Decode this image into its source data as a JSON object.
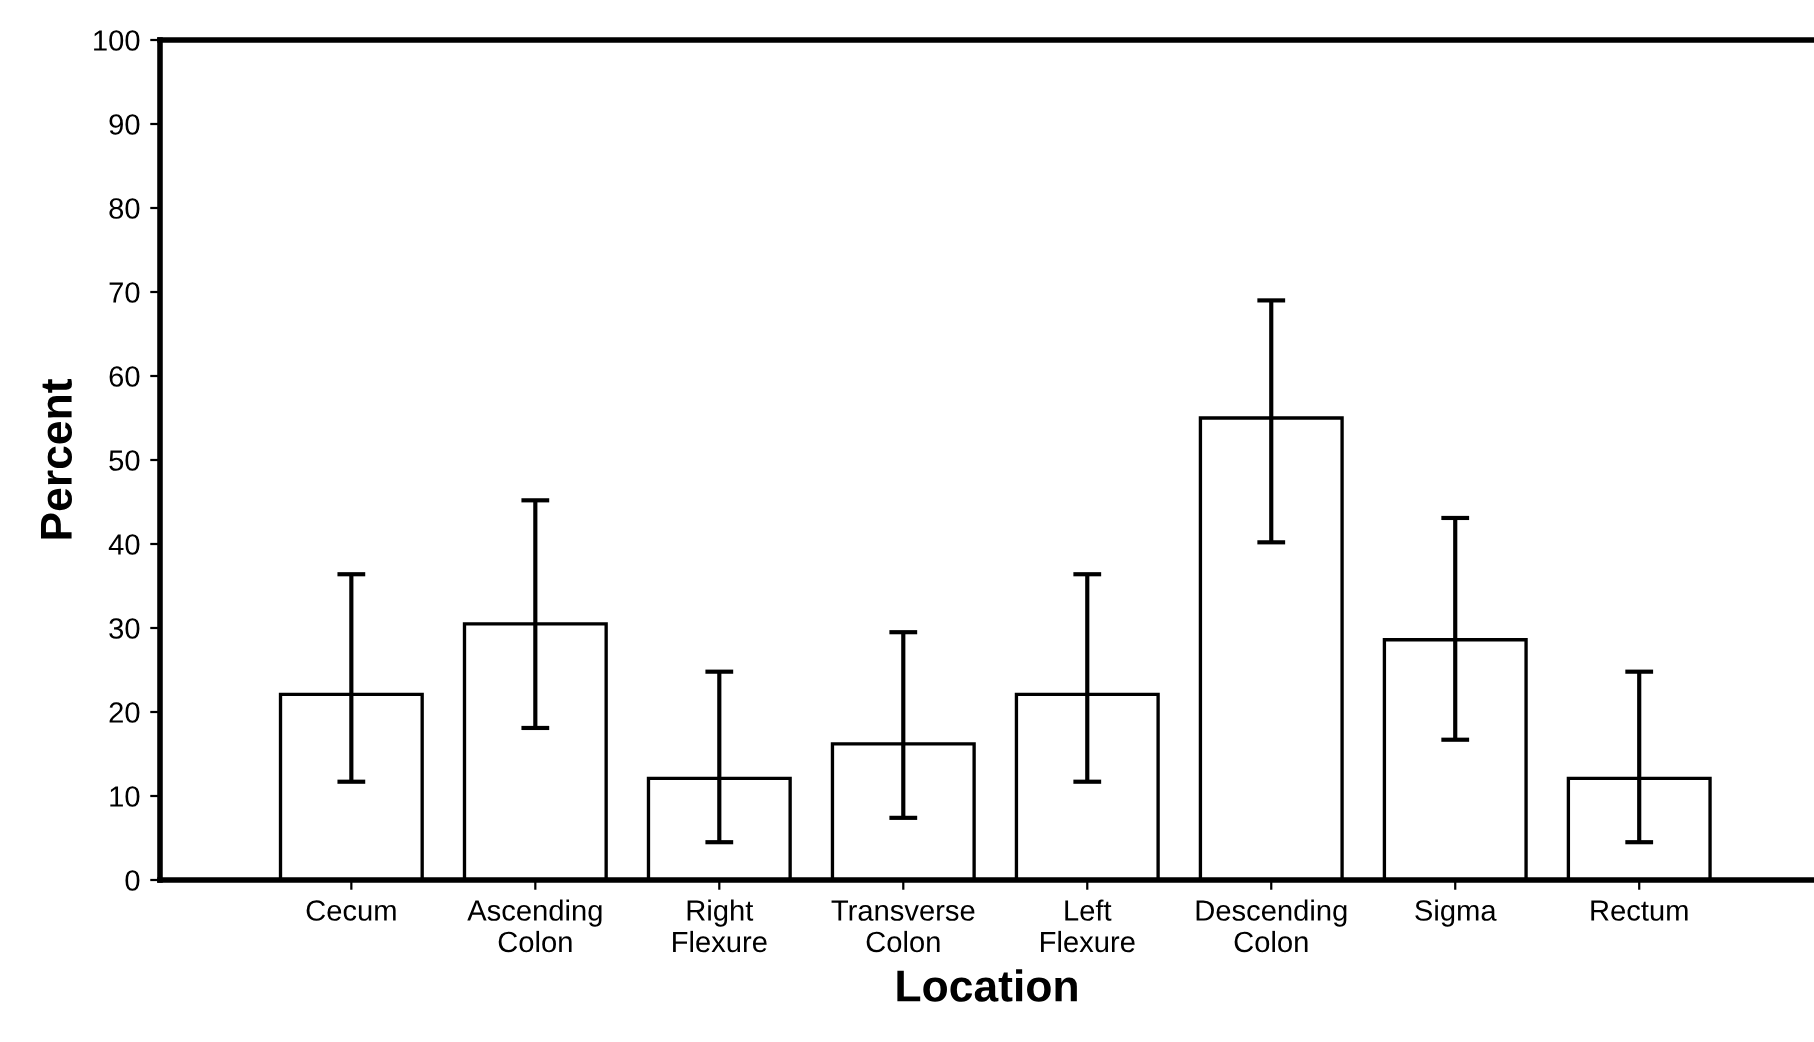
{
  "chart_data": {
    "type": "bar",
    "xlabel": "Location",
    "ylabel": "Percent",
    "categories": [
      "Cecum",
      "Ascending\nColon",
      "Right\nFlexure",
      "Transverse\nColon",
      "Left\nFlexure",
      "Descending\nColon",
      "Sigma",
      "Rectum"
    ],
    "values": [
      22.1,
      30.5,
      12.1,
      16.2,
      22.1,
      55.0,
      28.6,
      12.1
    ],
    "errors": [
      [
        11.7,
        36.4
      ],
      [
        18.1,
        45.2
      ],
      [
        4.5,
        24.8
      ],
      [
        7.4,
        29.5
      ],
      [
        11.7,
        36.4
      ],
      [
        40.2,
        69.0
      ],
      [
        16.7,
        43.1
      ],
      [
        4.5,
        24.8
      ]
    ],
    "color": "#ffffff",
    "ylim": [
      0,
      100
    ],
    "yticks": [
      0,
      10,
      20,
      30,
      40,
      50,
      60,
      70,
      80,
      90,
      100
    ],
    "grid": false,
    "legend": false
  }
}
